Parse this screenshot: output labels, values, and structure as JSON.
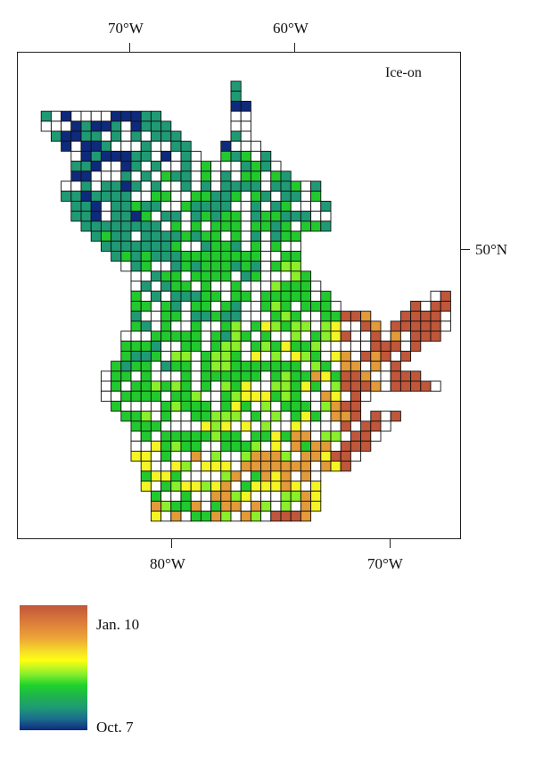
{
  "map": {
    "title": "Ice-on",
    "top_axis": [
      "70°W",
      "60°W"
    ],
    "bottom_axis": [
      "80°W",
      "70°W"
    ],
    "right_axis": [
      "50°N"
    ],
    "variable": "ice-on date",
    "grid": "latitude/longitude cells over Quebec–Labrador"
  },
  "legend": {
    "max_label": "Jan. 10",
    "min_label": "Oct. 7",
    "colors": {
      "late": "#c0563a",
      "orange": "#e39a38",
      "yellow": "#f5f525",
      "light_green": "#8bef2c",
      "green": "#22c92e",
      "teal": "#1f9a75",
      "early": "#0e2a7c",
      "empty_cell": "#ffffff"
    }
  }
}
